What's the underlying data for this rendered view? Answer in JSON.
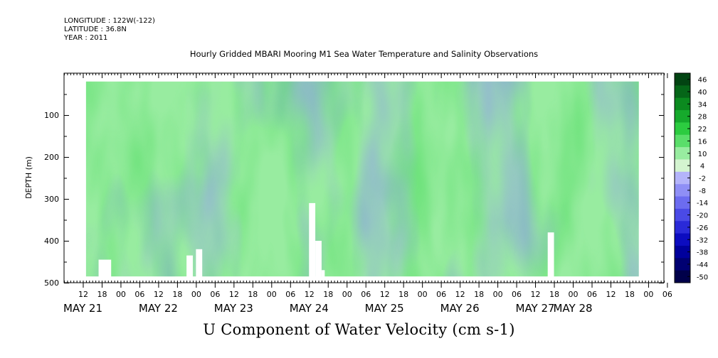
{
  "header": {
    "longitude": "LONGITUDE : 122W(-122)",
    "latitude": "LATITUDE : 36.8N",
    "year": "YEAR : 2011"
  },
  "chart_data": {
    "type": "heatmap",
    "title": "Hourly Gridded MBARI Mooring M1 Sea Water Temperature and Salinity Observations",
    "caption": "U Component of Water Velocity (cm s-1)",
    "ylabel": "DEPTH (m)",
    "ylim": [
      500,
      0
    ],
    "y_ticks": [
      100,
      200,
      300,
      400,
      500
    ],
    "y_tick_labels": [
      "100",
      "200",
      "300",
      "400",
      "500"
    ],
    "x_hour_ticks": [
      "12",
      "18",
      "00",
      "06",
      "12",
      "18",
      "00",
      "06",
      "12",
      "18",
      "00",
      "06",
      "12",
      "18",
      "00",
      "06",
      "12",
      "18",
      "00",
      "06",
      "12",
      "18",
      "00",
      "06",
      "12",
      "18",
      "00",
      "06",
      "12",
      "18",
      "00",
      "06"
    ],
    "x_start_hour": 12,
    "x_tick_step_hours": 6,
    "x_range_hours": [
      6,
      197
    ],
    "date_labels": [
      "MAY 21",
      "MAY 22",
      "MAY 23",
      "MAY 24",
      "MAY 25",
      "MAY 26",
      "MAY 27",
      "MAY 28"
    ],
    "date_label_hours": [
      12,
      36,
      60,
      84,
      108,
      132,
      156,
      168
    ],
    "data_extent_hours": [
      13,
      189
    ],
    "data_depth_range": [
      20,
      485
    ],
    "colorbar": {
      "levels": [
        -50,
        -44,
        -38,
        -32,
        -26,
        -20,
        -14,
        -8,
        -2,
        4,
        10,
        16,
        22,
        28,
        34,
        40,
        46
      ],
      "labels": [
        "46",
        "40",
        "34",
        "28",
        "22",
        "16",
        "10",
        "4",
        "-2",
        "-8",
        "-14",
        "-20",
        "-26",
        "-32",
        "-38",
        "-44",
        "-50"
      ],
      "colors": [
        "#00004a",
        "#000072",
        "#00009c",
        "#0c0cc0",
        "#2a2ad8",
        "#4a4ae6",
        "#6c6cf0",
        "#8f8ff6",
        "#b4b4fa",
        "#d4f4d0",
        "#98eca0",
        "#5ade6a",
        "#2ccc40",
        "#16aa2c",
        "#0b8a1f",
        "#056618",
        "#024412"
      ]
    },
    "missing_data_gaps": [
      {
        "hours": [
          17,
          21
        ],
        "depth": [
          445,
          500
        ]
      },
      {
        "hours": [
          45,
          47
        ],
        "depth": [
          435,
          500
        ]
      },
      {
        "hours": [
          48,
          50
        ],
        "depth": [
          420,
          500
        ]
      },
      {
        "hours": [
          84,
          86
        ],
        "depth": [
          310,
          500
        ]
      },
      {
        "hours": [
          86,
          88
        ],
        "depth": [
          400,
          500
        ]
      },
      {
        "hours": [
          88,
          89
        ],
        "depth": [
          470,
          500
        ]
      },
      {
        "hours": [
          160,
          162
        ],
        "depth": [
          380,
          500
        ]
      }
    ]
  }
}
